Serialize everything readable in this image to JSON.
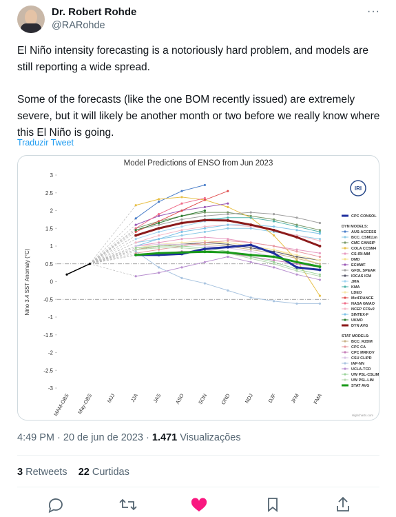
{
  "tweet": {
    "name": "Dr. Robert Rohde",
    "handle": "@RARohde",
    "body": [
      "El Niño intensity forecasting is a notoriously hard problem, and models are still reporting a wide spread.",
      "Some of the forecasts (like the one BOM recently issued) are extremely severe, but it will likely be another month or two before we really know where this El Niño is going."
    ],
    "translate": "Traduzir Tweet",
    "time": "4:49 PM · 20 de jun de 2023 · ",
    "views": "1.471",
    "views_label": " Visualizações",
    "retweets": "3",
    "retweets_label": " Retweets",
    "likes": "22",
    "likes_label": " Curtidas"
  },
  "chart_data": {
    "type": "line",
    "title": "Model Predictions of ENSO from Jun 2023",
    "y_label": "Nino 3.4 SST Anomaly (°C)",
    "logo": "IRI",
    "credits": "Highcharts.com",
    "categories": [
      "MAM-OBS",
      "May-OBS",
      "MJJ",
      "JJA",
      "JAS",
      "ASO",
      "SON",
      "OND",
      "NDJ",
      "DJF",
      "JFM",
      "FMA"
    ],
    "ylim": [
      -3,
      3
    ],
    "yticks": [
      3,
      2.5,
      2,
      1.5,
      1,
      0.5,
      0,
      -0.5,
      -1,
      -1.5,
      -2,
      -2.5,
      -3
    ],
    "grid": false,
    "reference_lines": [
      0.5,
      -0.5
    ],
    "observed": {
      "color": "#000000",
      "values": [
        0.2,
        0.5,
        null,
        null,
        null,
        null,
        null,
        null,
        null,
        null,
        null,
        null
      ]
    },
    "groups": [
      {
        "series": [
          {
            "name": "CPC CONSOL",
            "color": "#1f2f9e",
            "line_width": 3,
            "values": [
              null,
              null,
              null,
              0.75,
              0.75,
              0.78,
              0.92,
              0.97,
              1.03,
              0.8,
              0.4,
              0.33
            ]
          }
        ]
      },
      {
        "title": "DYN MODELS:",
        "series": [
          {
            "name": "AUS-ACCESS",
            "color": "#4a7ec9",
            "values": [
              null,
              null,
              null,
              1.78,
              2.25,
              2.55,
              2.72,
              null,
              null,
              null,
              null,
              null
            ]
          },
          {
            "name": "BCC_CSM11m",
            "color": "#8ecae6",
            "values": [
              null,
              null,
              null,
              1.1,
              1.2,
              1.3,
              1.4,
              1.5,
              1.5,
              1.4,
              1.3,
              1.2
            ]
          },
          {
            "name": "CMC CANSIP",
            "color": "#7a9a6a",
            "values": [
              null,
              null,
              null,
              1.5,
              1.7,
              1.85,
              1.95,
              1.95,
              1.85,
              1.75,
              1.6,
              1.45
            ]
          },
          {
            "name": "COLA CCSM4",
            "color": "#e8c048",
            "values": [
              null,
              null,
              null,
              2.15,
              2.32,
              2.38,
              2.3,
              2.1,
              1.8,
              1.3,
              0.6,
              -0.4
            ]
          },
          {
            "name": "CS-IRI-MM",
            "color": "#e79ac0",
            "values": [
              null,
              null,
              null,
              1.0,
              1.1,
              1.2,
              1.25,
              1.2,
              1.1,
              1.0,
              0.9,
              0.8
            ]
          },
          {
            "name": "DMD",
            "color": "#f3df8c",
            "values": [
              null,
              null,
              null,
              0.9,
              1.0,
              1.05,
              1.1,
              1.1,
              1.0,
              0.9,
              0.7,
              0.5
            ]
          },
          {
            "name": "ECMWF",
            "color": "#9b59b6",
            "values": [
              null,
              null,
              null,
              1.6,
              1.85,
              2.0,
              2.1,
              2.2,
              null,
              null,
              null,
              null
            ]
          },
          {
            "name": "GFDL SPEAR",
            "color": "#a0a0a0",
            "values": [
              null,
              null,
              null,
              1.45,
              1.6,
              1.75,
              1.85,
              1.9,
              1.95,
              1.9,
              1.8,
              1.65
            ]
          },
          {
            "name": "IOCAS ICM",
            "color": "#555566",
            "values": [
              null,
              null,
              null,
              0.9,
              1.0,
              1.05,
              1.1,
              1.05,
              0.95,
              0.85,
              0.7,
              0.6
            ]
          },
          {
            "name": "JMA",
            "color": "#9fd3f0",
            "values": [
              null,
              null,
              null,
              1.2,
              1.4,
              1.55,
              1.7,
              1.8,
              null,
              null,
              null,
              null
            ]
          },
          {
            "name": "KMA",
            "color": "#4fb3a9",
            "values": [
              null,
              null,
              null,
              1.3,
              1.5,
              1.65,
              1.75,
              1.8,
              1.8,
              1.7,
              1.55,
              1.4
            ]
          },
          {
            "name": "LDEO",
            "color": "#f6e7a6",
            "values": [
              null,
              null,
              null,
              0.95,
              1.05,
              1.1,
              1.15,
              1.1,
              1.0,
              0.9,
              0.75,
              0.6
            ]
          },
          {
            "name": "MetFRANCE",
            "color": "#e05050",
            "values": [
              null,
              null,
              null,
              1.4,
              1.7,
              2.0,
              2.3,
              2.55,
              null,
              null,
              null,
              null
            ]
          },
          {
            "name": "NASA GMAO",
            "color": "#f06e8a",
            "values": [
              null,
              null,
              null,
              1.5,
              1.9,
              2.2,
              2.35,
              null,
              null,
              null,
              null,
              null
            ]
          },
          {
            "name": "NCEP CFSv2",
            "color": "#f5b7c5",
            "values": [
              null,
              null,
              null,
              1.1,
              1.3,
              1.45,
              1.55,
              1.6,
              1.55,
              1.45,
              1.3,
              1.15
            ]
          },
          {
            "name": "SINTEX-F",
            "color": "#7fc3e8",
            "values": [
              null,
              null,
              null,
              1.0,
              1.2,
              1.4,
              1.5,
              1.6,
              1.6,
              1.55,
              1.45,
              1.35
            ]
          },
          {
            "name": "UKMO",
            "color": "#2e7d32",
            "values": [
              null,
              null,
              null,
              1.45,
              1.65,
              1.85,
              2.0,
              null,
              null,
              null,
              null,
              null
            ]
          },
          {
            "name": "DYN AVG",
            "color": "#8b1a1a",
            "line_width": 3,
            "values": [
              null,
              null,
              null,
              1.3,
              1.5,
              1.65,
              1.73,
              1.72,
              1.6,
              1.45,
              1.25,
              1.0
            ]
          }
        ]
      },
      {
        "title": "STAT MODELS:",
        "series": [
          {
            "name": "BCC_RZDM",
            "color": "#c9b38a",
            "values": [
              null,
              null,
              null,
              0.9,
              1.0,
              1.05,
              1.05,
              1.0,
              0.9,
              0.8,
              0.65,
              0.5
            ]
          },
          {
            "name": "CPC CA",
            "color": "#e89aa0",
            "values": [
              null,
              null,
              null,
              0.8,
              0.9,
              1.0,
              1.1,
              1.15,
              1.1,
              1.0,
              0.85,
              0.7
            ]
          },
          {
            "name": "CPC MRKOV",
            "color": "#c77fb8",
            "values": [
              null,
              null,
              null,
              0.75,
              0.8,
              0.85,
              0.85,
              0.8,
              0.7,
              0.6,
              0.5,
              0.4
            ]
          },
          {
            "name": "CSU CLIPR",
            "color": "#d9c4e6",
            "values": [
              null,
              null,
              null,
              1.0,
              1.05,
              1.05,
              1.0,
              0.95,
              0.85,
              0.7,
              0.55,
              0.4
            ]
          },
          {
            "name": "IAP-NN",
            "color": "#a9c4e0",
            "values": [
              null,
              null,
              null,
              0.85,
              0.4,
              0.1,
              -0.05,
              -0.25,
              -0.45,
              -0.55,
              -0.62,
              -0.62
            ]
          },
          {
            "name": "UCLA-TCD",
            "color": "#b88fcf",
            "values": [
              null,
              null,
              null,
              0.15,
              0.25,
              0.4,
              0.55,
              0.7,
              0.55,
              0.4,
              0.2,
              0.05
            ]
          },
          {
            "name": "UW PSL-CSLIM",
            "color": "#9cd49c",
            "values": [
              null,
              null,
              null,
              0.95,
              1.0,
              1.0,
              0.95,
              0.85,
              0.7,
              0.55,
              0.35,
              0.2
            ]
          },
          {
            "name": "UW PSL-LIM",
            "color": "#b7d7b0",
            "values": [
              null,
              null,
              null,
              0.9,
              0.95,
              0.95,
              0.9,
              0.8,
              0.65,
              0.5,
              0.3,
              0.15
            ]
          },
          {
            "name": "STAT AVG",
            "color": "#1a9a1a",
            "line_width": 3,
            "values": [
              null,
              null,
              null,
              0.75,
              0.8,
              0.82,
              0.84,
              0.82,
              0.75,
              0.7,
              0.55,
              0.42
            ]
          }
        ]
      }
    ]
  }
}
